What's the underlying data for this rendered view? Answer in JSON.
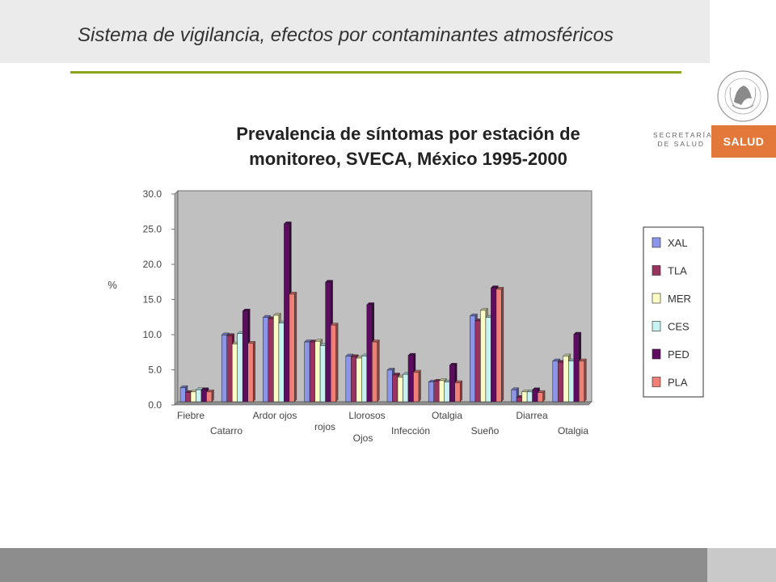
{
  "header": {
    "title": "Sistema de vigilancia, efectos por contaminantes atmosféricos"
  },
  "branding": {
    "seal_text": "ESTADOS UNIDOS MEXICANOS",
    "secretaria": "SECRETARÍA",
    "de_salud": "DE SALUD",
    "salud": "SALUD"
  },
  "colors": {
    "accent_green": "#8ba51a",
    "salud_orange": "#e2793a",
    "plot_bg": "#c0c0c0",
    "series": [
      "#8b95ea",
      "#9b3361",
      "#fbfbc4",
      "#c6f2f2",
      "#5d0c62",
      "#f07f78"
    ]
  },
  "chart_data": {
    "type": "bar",
    "title": "Prevalencia de síntomas por estación de monitoreo, SVECA, México 1995-2000",
    "ylabel": "%",
    "ylim": [
      0,
      30
    ],
    "yticks": [
      "0.0",
      "5.0",
      "10.0",
      "15.0",
      "20.0",
      "25.0",
      "30.0"
    ],
    "grid": false,
    "legend_position": "right",
    "category_labels": [
      [
        "Fiebre"
      ],
      [
        "Catarro"
      ],
      [
        "Ardor ojos"
      ],
      [
        "rojos"
      ],
      [
        "Llorosos",
        "Ojos"
      ],
      [
        "Infección"
      ],
      [
        "Otalgia"
      ],
      [
        "Sueño"
      ],
      [
        "Diarrea"
      ],
      [
        "Otalgia"
      ]
    ],
    "series": [
      {
        "name": "XAL",
        "values": [
          2.0,
          9.5,
          12.0,
          8.5,
          6.5,
          4.5,
          2.8,
          12.2,
          1.7,
          5.8
        ]
      },
      {
        "name": "TLA",
        "values": [
          1.3,
          9.4,
          11.8,
          8.5,
          6.4,
          3.8,
          2.9,
          11.5,
          0.6,
          5.6
        ]
      },
      {
        "name": "MER",
        "values": [
          1.4,
          8.2,
          12.3,
          8.6,
          6.2,
          3.5,
          3.0,
          13.0,
          1.4,
          6.5
        ]
      },
      {
        "name": "CES",
        "values": [
          1.7,
          9.7,
          11.2,
          8.0,
          6.5,
          3.9,
          2.8,
          12.0,
          1.4,
          5.8
        ]
      },
      {
        "name": "PED",
        "values": [
          1.7,
          12.9,
          25.3,
          17.0,
          13.8,
          6.6,
          5.2,
          16.2,
          1.7,
          9.6
        ]
      },
      {
        "name": "PLA",
        "values": [
          1.4,
          8.3,
          15.3,
          10.9,
          8.5,
          4.2,
          2.7,
          16.0,
          1.3,
          5.8
        ]
      }
    ]
  }
}
